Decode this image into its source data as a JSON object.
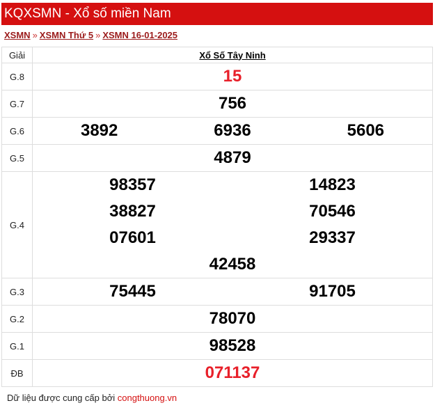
{
  "header": {
    "title": "KQXSMN - Xổ số miền Nam"
  },
  "breadcrumb": {
    "items": [
      "XSMN",
      "XSMN Thứ 5",
      "XSMN 16-01-2025"
    ],
    "separator": "»"
  },
  "table": {
    "col_prize": "Giải",
    "col_province": "Xổ Số Tây Ninh",
    "rows": [
      {
        "prize": "G.8",
        "numbers": [
          "15"
        ]
      },
      {
        "prize": "G.7",
        "numbers": [
          "756"
        ]
      },
      {
        "prize": "G.6",
        "numbers": [
          "3892",
          "6936",
          "5606"
        ]
      },
      {
        "prize": "G.5",
        "numbers": [
          "4879"
        ]
      },
      {
        "prize": "G.4",
        "numbers": [
          "98357",
          "14823",
          "38827",
          "70546",
          "07601",
          "29337",
          "42458"
        ]
      },
      {
        "prize": "G.3",
        "numbers": [
          "75445",
          "91705"
        ]
      },
      {
        "prize": "G.2",
        "numbers": [
          "78070"
        ]
      },
      {
        "prize": "G.1",
        "numbers": [
          "98528"
        ]
      },
      {
        "prize": "ĐB",
        "numbers": [
          "071137"
        ]
      }
    ]
  },
  "footer": {
    "text": "Dữ liệu được cung cấp bởi ",
    "source": "congthuong.vn"
  },
  "colors": {
    "header_bg": "#d51010",
    "highlight": "#e8202a"
  }
}
